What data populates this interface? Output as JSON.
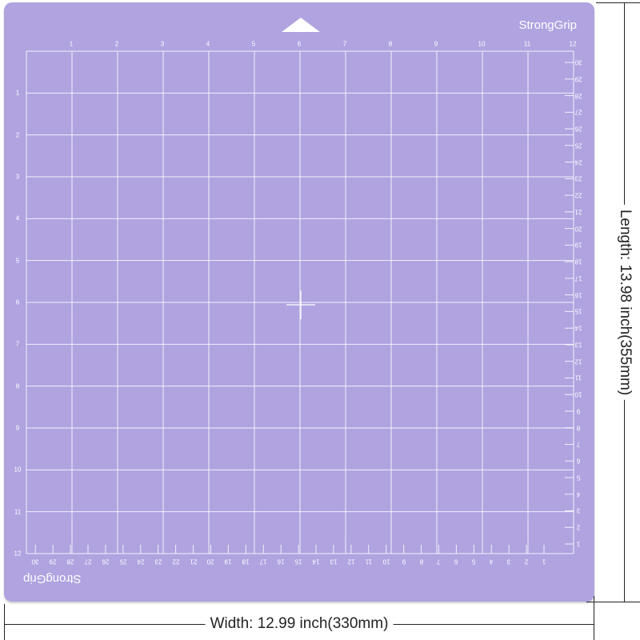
{
  "brand": "StrongGrip",
  "colors": {
    "mat": "#b0a3e0",
    "grid": "#ffffff"
  },
  "inch_labels_top": [
    "1",
    "2",
    "3",
    "4",
    "5",
    "6",
    "7",
    "8",
    "9",
    "10",
    "11",
    "12"
  ],
  "inch_labels_left": [
    "1",
    "2",
    "3",
    "4",
    "5",
    "6",
    "7",
    "8",
    "9",
    "10",
    "11",
    "12"
  ],
  "cm_labels_right": [
    "30",
    "29",
    "28",
    "27",
    "26",
    "25",
    "24",
    "23",
    "22",
    "21",
    "20",
    "19",
    "18",
    "17",
    "16",
    "15",
    "14",
    "13",
    "12",
    "11",
    "10",
    "9",
    "8",
    "7",
    "6",
    "5",
    "4",
    "3",
    "2",
    "1"
  ],
  "cm_labels_bottom": [
    "30",
    "29",
    "28",
    "27",
    "26",
    "25",
    "24",
    "23",
    "22",
    "21",
    "20",
    "19",
    "18",
    "17",
    "16",
    "15",
    "14",
    "13",
    "12",
    "11",
    "10",
    "9",
    "8",
    "7",
    "6",
    "5",
    "4",
    "3",
    "2",
    "1"
  ],
  "dimensions": {
    "length": "Length: 13.98 inch(355mm)",
    "width": "Width: 12.99 inch(330mm)"
  }
}
